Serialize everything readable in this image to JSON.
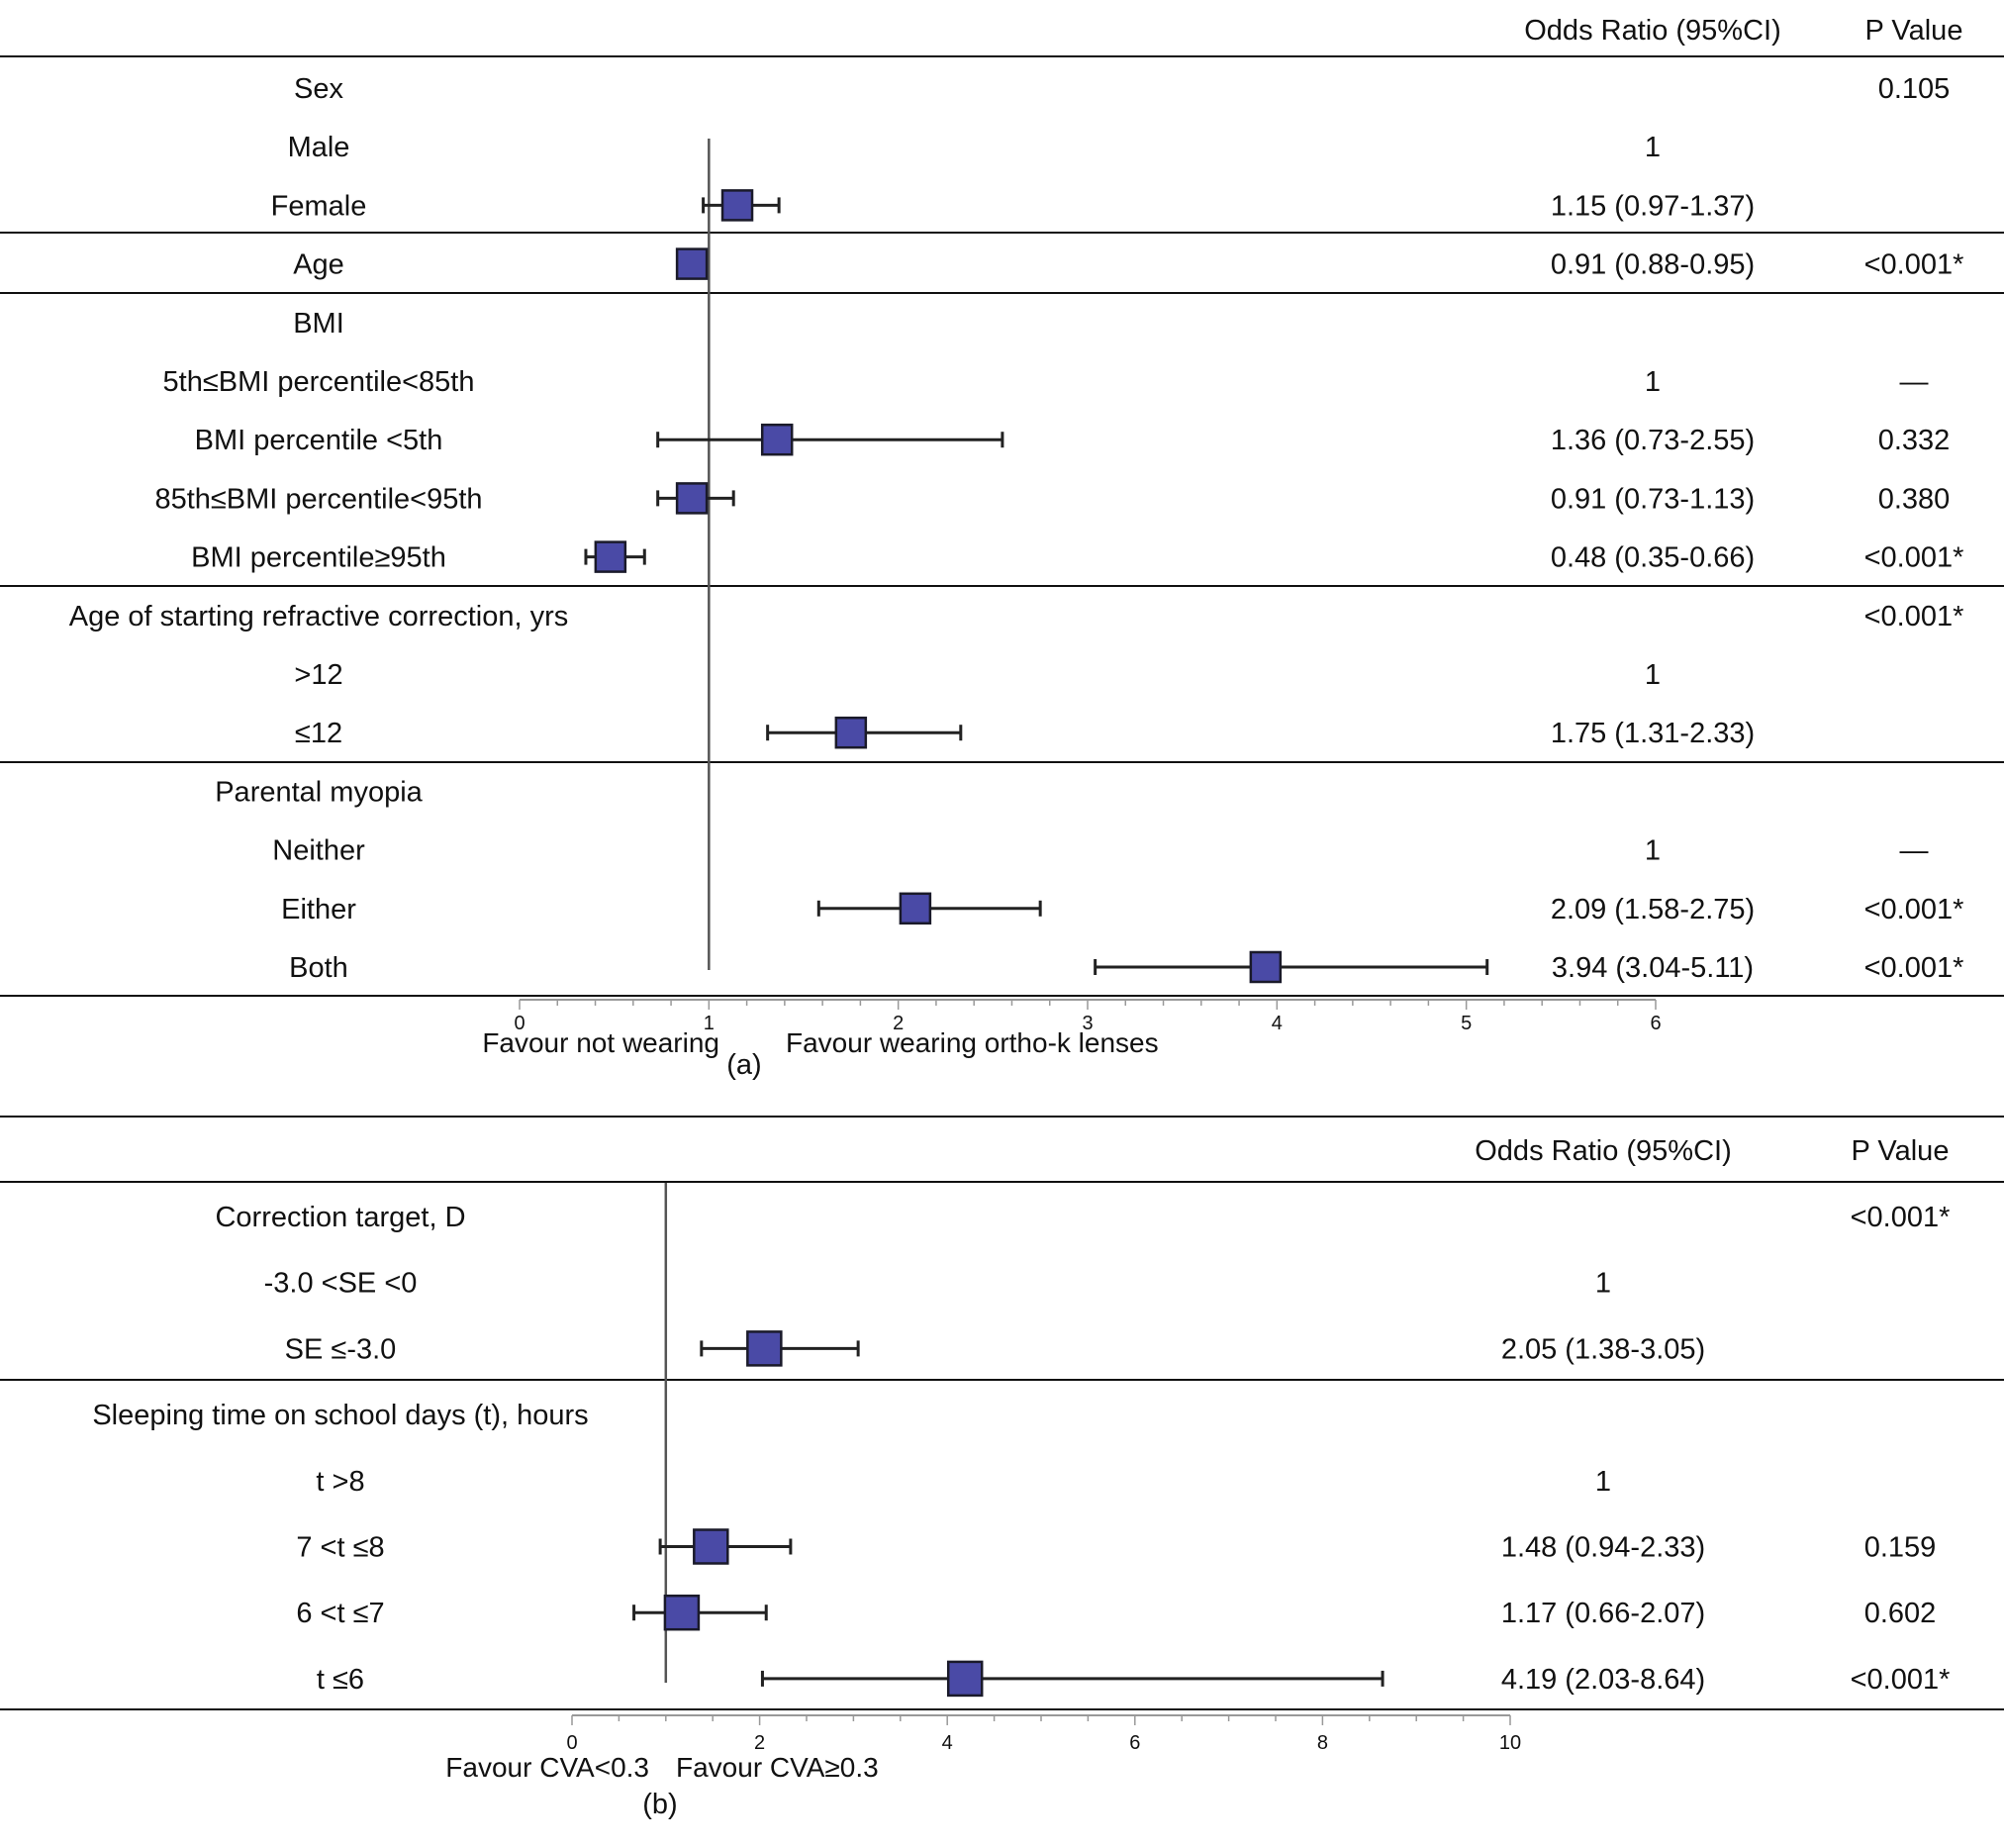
{
  "chart_data": [
    {
      "type": "forest",
      "panel_label": "(a)",
      "headers": {
        "or": "Odds Ratio (95%CI)",
        "p": "P Value"
      },
      "reference_line": 1,
      "xlim": [
        0,
        6
      ],
      "ticks": [
        0,
        1,
        2,
        3,
        4,
        5,
        6
      ],
      "tick_labels": [
        "0",
        "1",
        "2",
        "3",
        "4",
        "5",
        "6"
      ],
      "favour_left": "Favour not wearing",
      "favour_right": "Favour wearing ortho-k lenses",
      "rows": [
        {
          "label": "Sex",
          "or_text": "",
          "p": "0.105"
        },
        {
          "label": "Male",
          "or_text": "1",
          "p": ""
        },
        {
          "label": "Female",
          "or": 1.15,
          "lo": 0.97,
          "hi": 1.37,
          "or_text": "1.15 (0.97-1.37)",
          "p": ""
        },
        {
          "label": "Age",
          "or": 0.91,
          "lo": 0.88,
          "hi": 0.95,
          "or_text": "0.91 (0.88-0.95)",
          "p": "<0.001*"
        },
        {
          "label": "BMI",
          "or_text": "",
          "p": ""
        },
        {
          "label": "5th≤BMI percentile<85th",
          "or_text": "1",
          "p": "—"
        },
        {
          "label": "BMI percentile <5th",
          "or": 1.36,
          "lo": 0.73,
          "hi": 2.55,
          "or_text": "1.36 (0.73-2.55)",
          "p": "0.332"
        },
        {
          "label": "85th≤BMI percentile<95th",
          "or": 0.91,
          "lo": 0.73,
          "hi": 1.13,
          "or_text": "0.91 (0.73-1.13)",
          "p": "0.380"
        },
        {
          "label": "BMI percentile≥95th",
          "or": 0.48,
          "lo": 0.35,
          "hi": 0.66,
          "or_text": "0.48 (0.35-0.66)",
          "p": "<0.001*"
        },
        {
          "label": "Age of starting refractive correction, yrs",
          "or_text": "",
          "p": "<0.001*"
        },
        {
          "label": ">12",
          "or_text": "1",
          "p": ""
        },
        {
          "label": "≤12",
          "or": 1.75,
          "lo": 1.31,
          "hi": 2.33,
          "or_text": "1.75 (1.31-2.33)",
          "p": ""
        },
        {
          "label": "Parental myopia",
          "or_text": "",
          "p": ""
        },
        {
          "label": "Neither",
          "or_text": "1",
          "p": "—"
        },
        {
          "label": "Either",
          "or": 2.09,
          "lo": 1.58,
          "hi": 2.75,
          "or_text": "2.09 (1.58-2.75)",
          "p": "<0.001*"
        },
        {
          "label": "Both",
          "or": 3.94,
          "lo": 3.04,
          "hi": 5.11,
          "or_text": "3.94 (3.04-5.11)",
          "p": "<0.001*"
        }
      ]
    },
    {
      "type": "forest",
      "panel_label": "(b)",
      "headers": {
        "or": "Odds Ratio (95%CI)",
        "p": "P Value"
      },
      "reference_line": 1,
      "xlim": [
        0,
        10
      ],
      "ticks": [
        0,
        2,
        4,
        6,
        8,
        10
      ],
      "tick_labels": [
        "0",
        "2",
        "4",
        "6",
        "8",
        "10"
      ],
      "favour_left": "Favour CVA<0.3",
      "favour_right": "Favour CVA≥0.3",
      "rows": [
        {
          "label": "Correction target, D",
          "or_text": "",
          "p": "<0.001*"
        },
        {
          "label": "-3.0 <SE <0",
          "or_text": "1",
          "p": ""
        },
        {
          "label": "SE ≤-3.0",
          "or": 2.05,
          "lo": 1.38,
          "hi": 3.05,
          "or_text": "2.05 (1.38-3.05)",
          "p": ""
        },
        {
          "label": "Sleeping time on school days (t), hours",
          "or_text": "",
          "p": ""
        },
        {
          "label": "t >8",
          "or_text": "1",
          "p": ""
        },
        {
          "label": "7 <t ≤8",
          "or": 1.48,
          "lo": 0.94,
          "hi": 2.33,
          "or_text": "1.48 (0.94-2.33)",
          "p": "0.159"
        },
        {
          "label": "6 <t ≤7",
          "or": 1.17,
          "lo": 0.66,
          "hi": 2.07,
          "or_text": "1.17 (0.66-2.07)",
          "p": "0.602"
        },
        {
          "label": "t ≤6",
          "or": 4.19,
          "lo": 2.03,
          "hi": 8.64,
          "or_text": "4.19 (2.03-8.64)",
          "p": "<0.001*"
        }
      ]
    }
  ]
}
